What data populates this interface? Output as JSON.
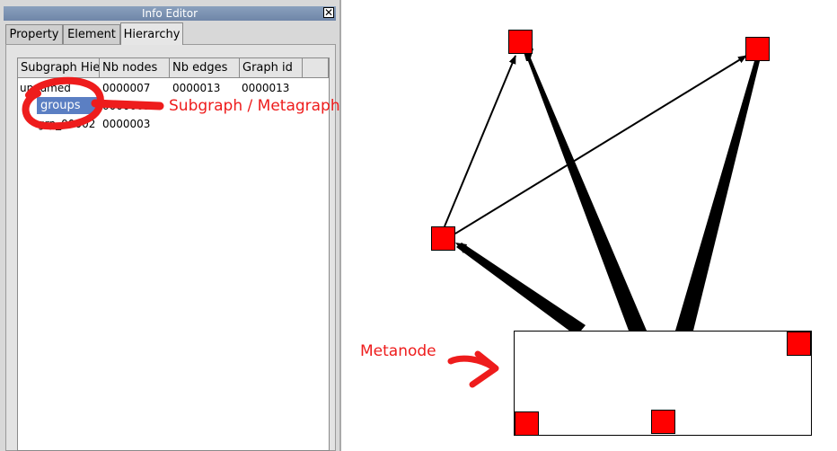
{
  "window": {
    "title": "Info Editor",
    "close_glyph": "✕"
  },
  "tabs": [
    {
      "label": "Property"
    },
    {
      "label": "Element"
    },
    {
      "label": "Hierarchy"
    }
  ],
  "tree": {
    "headers": [
      "Subgraph Hie",
      "Nb nodes",
      "Nb edges",
      "Graph id"
    ],
    "rows": [
      {
        "name": "unnamed",
        "nodes": "0000007",
        "edges": "0000013",
        "id": "0000013"
      },
      {
        "name": "groups",
        "nodes": "0000003",
        "edges": "",
        "id": ""
      },
      {
        "name": "grp_00002",
        "nodes": "0000003",
        "edges": "",
        "id": ""
      }
    ]
  },
  "annotations": {
    "subgraph": "Subgraph / Metagraph",
    "metanode": "Metanode"
  },
  "colors": {
    "annotation": "#ee1c1c",
    "node_fill": "#ff0000",
    "selection": "#5b7fc3"
  }
}
